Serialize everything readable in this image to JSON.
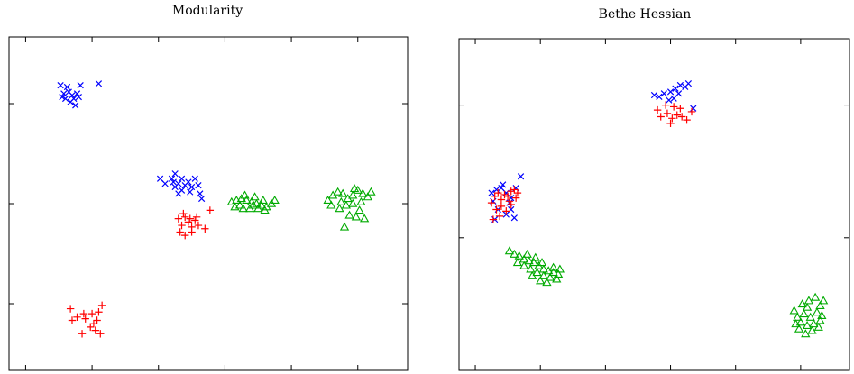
{
  "chart_data": [
    {
      "type": "scatter",
      "title": "Modularity",
      "xlabel": "",
      "ylabel": "",
      "xlim": [
        0,
        12
      ],
      "ylim": [
        0,
        10
      ],
      "grid": false,
      "legend": "none",
      "x_ticks": [
        0.5,
        2.5,
        4.5,
        6.5,
        8.5,
        10.5
      ],
      "y_ticks": [
        2,
        5,
        8
      ],
      "series": [
        {
          "marker": "x",
          "color": "#0000ff",
          "points": [
            [
              1.55,
              8.55
            ],
            [
              1.75,
              8.5
            ],
            [
              1.9,
              8.25
            ],
            [
              1.6,
              8.2
            ],
            [
              1.85,
              8.05
            ],
            [
              1.95,
              8.15
            ],
            [
              2.05,
              8.3
            ],
            [
              2.15,
              8.55
            ],
            [
              2.7,
              8.6
            ],
            [
              1.7,
              8.15
            ],
            [
              2.0,
              7.95
            ],
            [
              1.8,
              8.35
            ],
            [
              2.1,
              8.2
            ],
            [
              1.65,
              8.3
            ],
            [
              4.55,
              5.75
            ],
            [
              4.7,
              5.6
            ],
            [
              4.9,
              5.75
            ],
            [
              5.0,
              5.9
            ],
            [
              5.1,
              5.6
            ],
            [
              5.2,
              5.75
            ],
            [
              5.3,
              5.55
            ],
            [
              5.4,
              5.65
            ],
            [
              5.5,
              5.5
            ],
            [
              5.6,
              5.75
            ],
            [
              5.0,
              5.5
            ],
            [
              5.2,
              5.4
            ],
            [
              5.45,
              5.35
            ],
            [
              5.7,
              5.55
            ],
            [
              5.75,
              5.3
            ],
            [
              5.8,
              5.15
            ],
            [
              5.1,
              5.3
            ],
            [
              4.95,
              5.65
            ]
          ]
        },
        {
          "marker": "+",
          "color": "#ff0000",
          "points": [
            [
              1.85,
              1.85
            ],
            [
              2.05,
              1.6
            ],
            [
              2.25,
              1.7
            ],
            [
              2.5,
              1.7
            ],
            [
              2.7,
              1.75
            ],
            [
              2.8,
              1.95
            ],
            [
              1.9,
              1.5
            ],
            [
              2.3,
              1.55
            ],
            [
              2.55,
              1.4
            ],
            [
              2.6,
              1.2
            ],
            [
              2.75,
              1.1
            ],
            [
              2.2,
              1.1
            ],
            [
              2.65,
              1.5
            ],
            [
              2.45,
              1.3
            ],
            [
              5.1,
              4.55
            ],
            [
              5.2,
              4.35
            ],
            [
              5.3,
              4.6
            ],
            [
              5.4,
              4.45
            ],
            [
              5.5,
              4.3
            ],
            [
              5.6,
              4.5
            ],
            [
              5.7,
              4.35
            ],
            [
              5.15,
              4.15
            ],
            [
              5.3,
              4.05
            ],
            [
              5.5,
              4.15
            ],
            [
              5.9,
              4.25
            ],
            [
              6.05,
              4.8
            ],
            [
              5.25,
              4.7
            ],
            [
              5.45,
              4.55
            ],
            [
              5.65,
              4.6
            ]
          ]
        },
        {
          "marker": "triangle",
          "color": "#00aa00",
          "points": [
            [
              6.7,
              5.05
            ],
            [
              6.85,
              5.1
            ],
            [
              7.0,
              5.15
            ],
            [
              7.15,
              5.1
            ],
            [
              7.3,
              5.05
            ],
            [
              7.45,
              5.0
            ],
            [
              7.6,
              4.95
            ],
            [
              7.75,
              4.9
            ],
            [
              7.9,
              5.0
            ],
            [
              8.0,
              5.1
            ],
            [
              6.8,
              4.9
            ],
            [
              7.05,
              4.85
            ],
            [
              7.25,
              4.85
            ],
            [
              7.5,
              4.85
            ],
            [
              7.65,
              5.1
            ],
            [
              7.4,
              5.2
            ],
            [
              7.1,
              5.25
            ],
            [
              6.95,
              4.95
            ],
            [
              7.35,
              4.95
            ],
            [
              7.7,
              4.8
            ],
            [
              9.6,
              5.1
            ],
            [
              9.75,
              5.25
            ],
            [
              9.9,
              5.35
            ],
            [
              10.05,
              5.3
            ],
            [
              10.2,
              5.15
            ],
            [
              10.35,
              5.25
            ],
            [
              10.5,
              5.4
            ],
            [
              10.65,
              5.3
            ],
            [
              10.8,
              5.2
            ],
            [
              9.7,
              4.95
            ],
            [
              9.95,
              4.85
            ],
            [
              10.15,
              4.95
            ],
            [
              10.35,
              5.0
            ],
            [
              10.55,
              4.8
            ],
            [
              10.7,
              4.55
            ],
            [
              10.45,
              4.6
            ],
            [
              10.1,
              4.3
            ],
            [
              10.25,
              4.65
            ],
            [
              10.0,
              5.05
            ],
            [
              10.9,
              5.35
            ],
            [
              10.4,
              5.45
            ],
            [
              10.6,
              5.05
            ]
          ]
        }
      ]
    },
    {
      "type": "scatter",
      "title": "Bethe Hessian",
      "xlabel": "",
      "ylabel": "",
      "xlim": [
        0,
        12
      ],
      "ylim": [
        0,
        10
      ],
      "grid": false,
      "legend": "none",
      "x_ticks": [
        0.5,
        2.5,
        4.5,
        6.5,
        8.5,
        10.5
      ],
      "y_ticks": [
        4,
        8
      ],
      "series": [
        {
          "marker": "x",
          "color": "#0000ff",
          "points": [
            [
              6.0,
              8.3
            ],
            [
              6.15,
              8.25
            ],
            [
              6.3,
              8.35
            ],
            [
              6.5,
              8.4
            ],
            [
              6.65,
              8.5
            ],
            [
              6.8,
              8.6
            ],
            [
              6.95,
              8.55
            ],
            [
              7.05,
              8.65
            ],
            [
              6.6,
              8.2
            ],
            [
              6.75,
              8.35
            ],
            [
              6.45,
              8.15
            ],
            [
              7.2,
              7.9
            ],
            [
              1.0,
              5.35
            ],
            [
              1.15,
              5.45
            ],
            [
              1.3,
              5.5
            ],
            [
              1.45,
              5.35
            ],
            [
              1.6,
              5.2
            ],
            [
              1.75,
              5.5
            ],
            [
              1.9,
              5.85
            ],
            [
              1.05,
              5.1
            ],
            [
              1.2,
              4.85
            ],
            [
              1.45,
              4.7
            ],
            [
              1.6,
              4.85
            ],
            [
              1.7,
              4.6
            ],
            [
              1.1,
              4.55
            ],
            [
              1.35,
              5.6
            ],
            [
              1.55,
              5.05
            ]
          ]
        },
        {
          "marker": "+",
          "color": "#ff0000",
          "points": [
            [
              6.1,
              7.85
            ],
            [
              6.2,
              7.65
            ],
            [
              6.4,
              7.75
            ],
            [
              6.55,
              7.6
            ],
            [
              6.7,
              7.7
            ],
            [
              6.85,
              7.65
            ],
            [
              7.0,
              7.55
            ],
            [
              7.15,
              7.8
            ],
            [
              6.35,
              8.0
            ],
            [
              6.6,
              7.95
            ],
            [
              6.8,
              7.9
            ],
            [
              6.5,
              7.45
            ],
            [
              1.0,
              5.05
            ],
            [
              1.1,
              5.25
            ],
            [
              1.2,
              5.35
            ],
            [
              1.3,
              5.15
            ],
            [
              1.4,
              5.3
            ],
            [
              1.5,
              5.25
            ],
            [
              1.6,
              5.4
            ],
            [
              1.7,
              5.45
            ],
            [
              1.8,
              5.35
            ],
            [
              1.15,
              4.85
            ],
            [
              1.3,
              4.95
            ],
            [
              1.45,
              4.8
            ],
            [
              1.6,
              5.0
            ],
            [
              1.75,
              5.2
            ],
            [
              1.05,
              4.55
            ],
            [
              1.25,
              4.65
            ],
            [
              1.55,
              5.1
            ]
          ]
        },
        {
          "marker": "triangle",
          "color": "#00aa00",
          "points": [
            [
              1.55,
              3.6
            ],
            [
              1.7,
              3.5
            ],
            [
              1.85,
              3.45
            ],
            [
              2.0,
              3.35
            ],
            [
              2.15,
              3.3
            ],
            [
              2.3,
              3.25
            ],
            [
              2.45,
              3.15
            ],
            [
              2.6,
              3.05
            ],
            [
              2.75,
              3.0
            ],
            [
              2.9,
              2.95
            ],
            [
              3.05,
              2.9
            ],
            [
              2.0,
              3.15
            ],
            [
              2.2,
              3.05
            ],
            [
              2.4,
              2.95
            ],
            [
              2.6,
              2.85
            ],
            [
              2.8,
              2.8
            ],
            [
              3.0,
              2.75
            ],
            [
              2.1,
              3.5
            ],
            [
              2.35,
              3.4
            ],
            [
              2.55,
              3.25
            ],
            [
              2.7,
              2.65
            ],
            [
              2.9,
              3.1
            ],
            [
              1.8,
              3.25
            ],
            [
              2.5,
              2.7
            ],
            [
              3.1,
              3.05
            ],
            [
              2.25,
              2.85
            ],
            [
              10.3,
              1.8
            ],
            [
              10.4,
              1.6
            ],
            [
              10.5,
              1.45
            ],
            [
              10.6,
              1.7
            ],
            [
              10.7,
              1.9
            ],
            [
              10.8,
              1.6
            ],
            [
              10.9,
              1.4
            ],
            [
              11.0,
              1.75
            ],
            [
              11.1,
              1.95
            ],
            [
              11.15,
              1.65
            ],
            [
              10.45,
              1.25
            ],
            [
              10.65,
              1.1
            ],
            [
              10.85,
              1.2
            ],
            [
              11.05,
              1.3
            ],
            [
              10.55,
              2.0
            ],
            [
              10.75,
              2.1
            ],
            [
              10.95,
              2.2
            ],
            [
              11.2,
              2.1
            ],
            [
              10.35,
              1.4
            ],
            [
              10.7,
              1.35
            ],
            [
              11.1,
              1.5
            ]
          ]
        }
      ]
    }
  ]
}
